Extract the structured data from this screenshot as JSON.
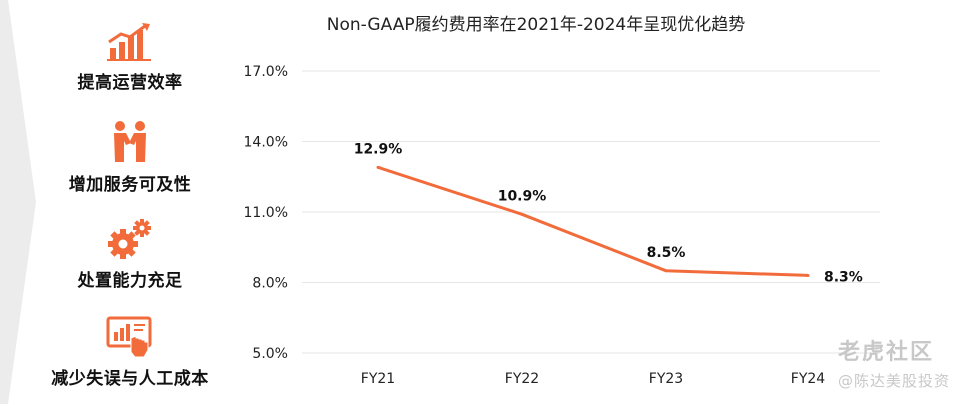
{
  "features": [
    {
      "icon": "growth-chart-icon",
      "label": "提高运营效率"
    },
    {
      "icon": "handshake-icon",
      "label": "增加服务可及性"
    },
    {
      "icon": "gears-icon",
      "label": "处置能力充足"
    },
    {
      "icon": "screen-touch-icon",
      "label": "减少失误与人工成本"
    }
  ],
  "watermark": {
    "logo": "老虎社区",
    "sub": "@陈达美股投资"
  },
  "colors": {
    "accent": "#f26b3a",
    "text": "#111111",
    "grid": "#e6e6e6",
    "chevron": "#e9e9e9"
  },
  "chart_data": {
    "type": "line",
    "title": "Non-GAAP履约费用率在2021年-2024年呈现优化趋势",
    "categories": [
      "FY21",
      "FY22",
      "FY23",
      "FY24"
    ],
    "series": [
      {
        "values": [
          12.9,
          10.9,
          8.5,
          8.3
        ],
        "labels": [
          "12.9%",
          "10.9%",
          "8.5%",
          "8.3%"
        ]
      }
    ],
    "yticks": [
      "5.0%",
      "8.0%",
      "11.0%",
      "14.0%",
      "17.0%"
    ],
    "ytick_values": [
      5,
      8,
      11,
      14,
      17
    ],
    "ylim": [
      5,
      17
    ],
    "grid": true,
    "legend": "none"
  }
}
